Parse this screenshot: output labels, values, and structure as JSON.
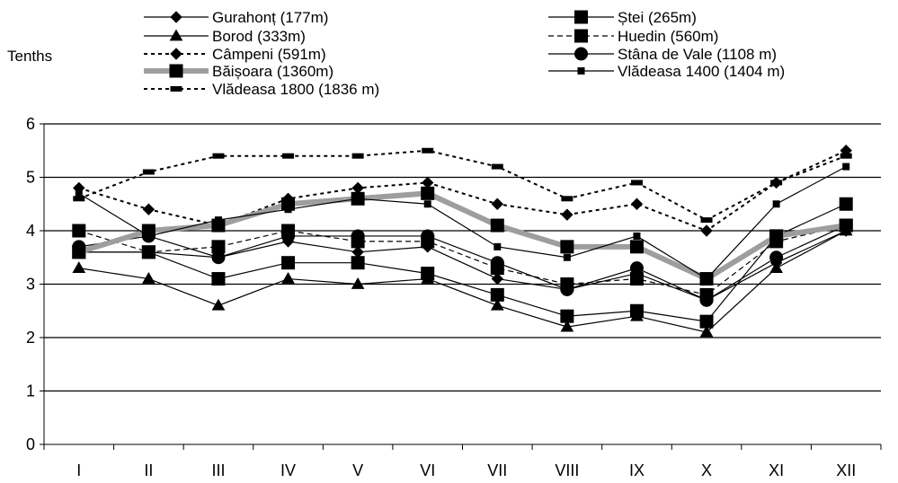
{
  "chart_data": {
    "type": "line",
    "title": "",
    "ylabel": "Tenths",
    "xlabel": "",
    "ylim": [
      0,
      6
    ],
    "yticks": [
      0,
      1,
      2,
      3,
      4,
      5,
      6
    ],
    "grid": "horizontal",
    "legend_placement": "top",
    "categories": [
      "I",
      "II",
      "III",
      "IV",
      "V",
      "VI",
      "VII",
      "VIII",
      "IX",
      "X",
      "XI",
      "XII"
    ],
    "series": [
      {
        "name": "Gurahonț (177m)",
        "marker": "diamond",
        "dash": "solid",
        "color": "#000000",
        "values": [
          3.6,
          3.6,
          3.5,
          3.8,
          3.6,
          3.7,
          3.1,
          2.9,
          3.2,
          2.7,
          3.4,
          4.0
        ]
      },
      {
        "name": "Ștei (265m)",
        "marker": "square",
        "dash": "solid",
        "color": "#000000",
        "values": [
          3.6,
          3.6,
          3.1,
          3.4,
          3.4,
          3.2,
          2.8,
          2.4,
          2.5,
          2.3,
          3.9,
          4.5
        ]
      },
      {
        "name": "Borod (333m)",
        "marker": "triangle",
        "dash": "solid",
        "color": "#000000",
        "values": [
          3.3,
          3.1,
          2.6,
          3.1,
          3.0,
          3.1,
          2.6,
          2.2,
          2.4,
          2.1,
          3.3,
          4.0
        ]
      },
      {
        "name": "Huedin (560m)",
        "marker": "square",
        "dash": "dashed",
        "color": "#000000",
        "values": [
          4.0,
          3.6,
          3.7,
          4.0,
          3.8,
          3.8,
          3.3,
          3.0,
          3.1,
          2.8,
          3.8,
          4.1
        ]
      },
      {
        "name": "Câmpeni (591m)",
        "marker": "diamond",
        "dash": "dotted",
        "color": "#000000",
        "values": [
          4.8,
          4.4,
          4.1,
          4.6,
          4.8,
          4.9,
          4.5,
          4.3,
          4.5,
          4.0,
          4.9,
          5.5
        ]
      },
      {
        "name": "Stâna de Vale (1108 m)",
        "marker": "circle",
        "dash": "solid",
        "color": "#000000",
        "values": [
          3.7,
          3.9,
          3.5,
          3.9,
          3.9,
          3.9,
          3.4,
          2.9,
          3.3,
          2.7,
          3.5,
          4.1
        ]
      },
      {
        "name": "Băișoara (1360m)",
        "marker": "square",
        "dash": "solid",
        "color": "#9e9e9e",
        "thick": true,
        "values": [
          3.6,
          4.0,
          4.1,
          4.5,
          4.6,
          4.7,
          4.1,
          3.7,
          3.7,
          3.1,
          3.9,
          4.1
        ]
      },
      {
        "name": "Vlădeasa 1400 (1404 m)",
        "marker": "smallsquare",
        "dash": "solid",
        "color": "#000000",
        "values": [
          4.7,
          3.9,
          4.2,
          4.4,
          4.6,
          4.5,
          3.7,
          3.5,
          3.9,
          3.1,
          4.5,
          5.2
        ]
      },
      {
        "name": "Vlădeasa 1800 (1836 m)",
        "marker": "dash",
        "dash": "dotted",
        "color": "#000000",
        "values": [
          4.6,
          5.1,
          5.4,
          5.4,
          5.4,
          5.5,
          5.2,
          4.6,
          4.9,
          4.2,
          4.9,
          5.4
        ]
      }
    ]
  }
}
